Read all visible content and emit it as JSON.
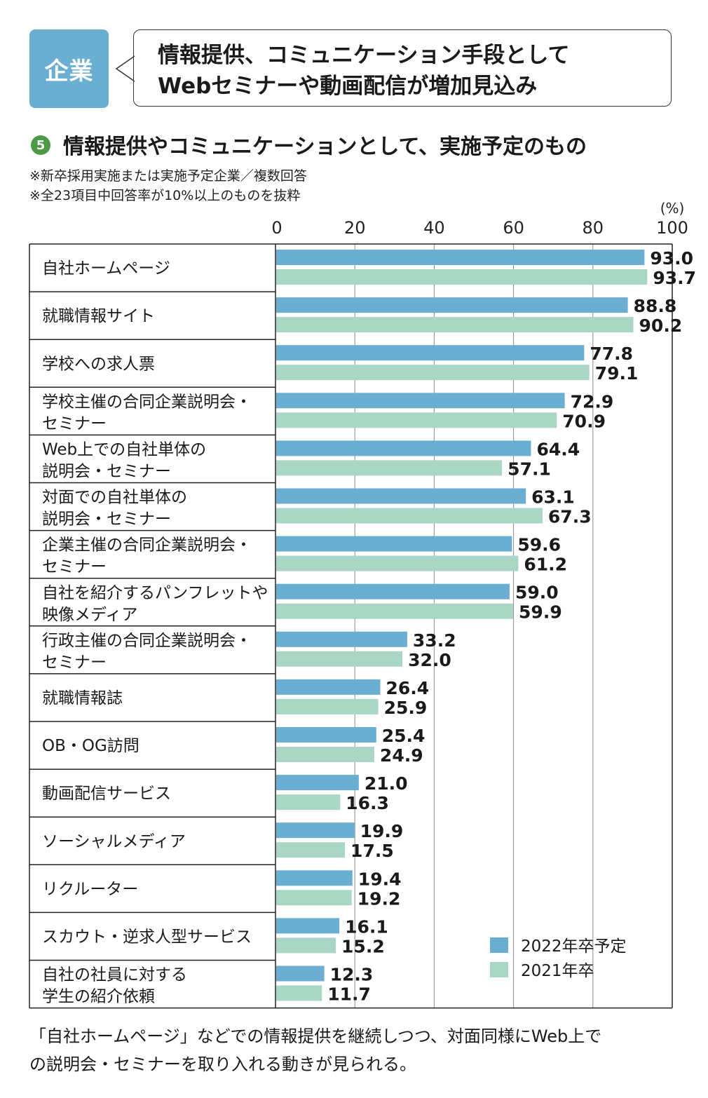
{
  "header": {
    "badge": "企業",
    "headline_line1": "情報提供、コミュニケーション手段として",
    "headline_line2": "Webセミナーや動画配信が増加見込み"
  },
  "figure": {
    "number": "5",
    "title": "情報提供やコミュニケーションとして、実施予定のもの",
    "note1": "※新卒採用実施または実施予定企業／複数回答",
    "note2": "※全23項目中回答率が10%以上のものを抜粋"
  },
  "footer": {
    "line1": "「自社ホームページ」などでの情報提供を継続しつつ、対面同様にWeb上で",
    "line2": "の説明会・セミナーを取り入れる動きが見られる。"
  },
  "colors": {
    "series_2022": "#6aaed1",
    "series_2021": "#a9d6c5",
    "badge": "#6aaed1",
    "number_circle": "#4c9a43"
  },
  "chart_data": {
    "type": "bar",
    "orientation": "horizontal",
    "unit": "(%)",
    "xlim": [
      0,
      100
    ],
    "x_ticks": [
      "0",
      "20",
      "40",
      "60",
      "80",
      "100"
    ],
    "grid": true,
    "legend_position": "bottom-right",
    "categories": [
      [
        "自社ホームページ"
      ],
      [
        "就職情報サイト"
      ],
      [
        "学校への求人票"
      ],
      [
        "学校主催の合同企業説明会・",
        "セミナー"
      ],
      [
        "Web上での自社単体の",
        "説明会・セミナー"
      ],
      [
        "対面での自社単体の",
        "説明会・セミナー"
      ],
      [
        "企業主催の合同企業説明会・",
        "セミナー"
      ],
      [
        "自社を紹介するパンフレットや",
        "映像メディア"
      ],
      [
        "行政主催の合同企業説明会・",
        "セミナー"
      ],
      [
        "就職情報誌"
      ],
      [
        "OB・OG訪問"
      ],
      [
        "動画配信サービス"
      ],
      [
        "ソーシャルメディア"
      ],
      [
        "リクルーター"
      ],
      [
        "スカウト・逆求人型サービス"
      ],
      [
        "自社の社員に対する",
        "学生の紹介依頼"
      ]
    ],
    "series": [
      {
        "name": "2022年卒予定",
        "values": [
          93.0,
          88.8,
          77.8,
          72.9,
          64.4,
          63.1,
          59.6,
          59.0,
          33.2,
          26.4,
          25.4,
          21.0,
          19.9,
          19.4,
          16.1,
          12.3
        ],
        "labels": [
          "93.0",
          "88.8",
          "77.8",
          "72.9",
          "64.4",
          "63.1",
          "59.6",
          "59.0",
          "33.2",
          "26.4",
          "25.4",
          "21.0",
          "19.9",
          "19.4",
          "16.1",
          "12.3"
        ]
      },
      {
        "name": "2021年卒",
        "values": [
          93.7,
          90.2,
          79.1,
          70.9,
          57.1,
          67.3,
          61.2,
          59.9,
          32.0,
          25.9,
          24.9,
          16.3,
          17.5,
          19.2,
          15.2,
          11.7
        ],
        "labels": [
          "93.7",
          "90.2",
          "79.1",
          "70.9",
          "57.1",
          "67.3",
          "61.2",
          "59.9",
          "32.0",
          "25.9",
          "24.9",
          "16.3",
          "17.5",
          "19.2",
          "15.2",
          "11.7"
        ]
      }
    ]
  }
}
